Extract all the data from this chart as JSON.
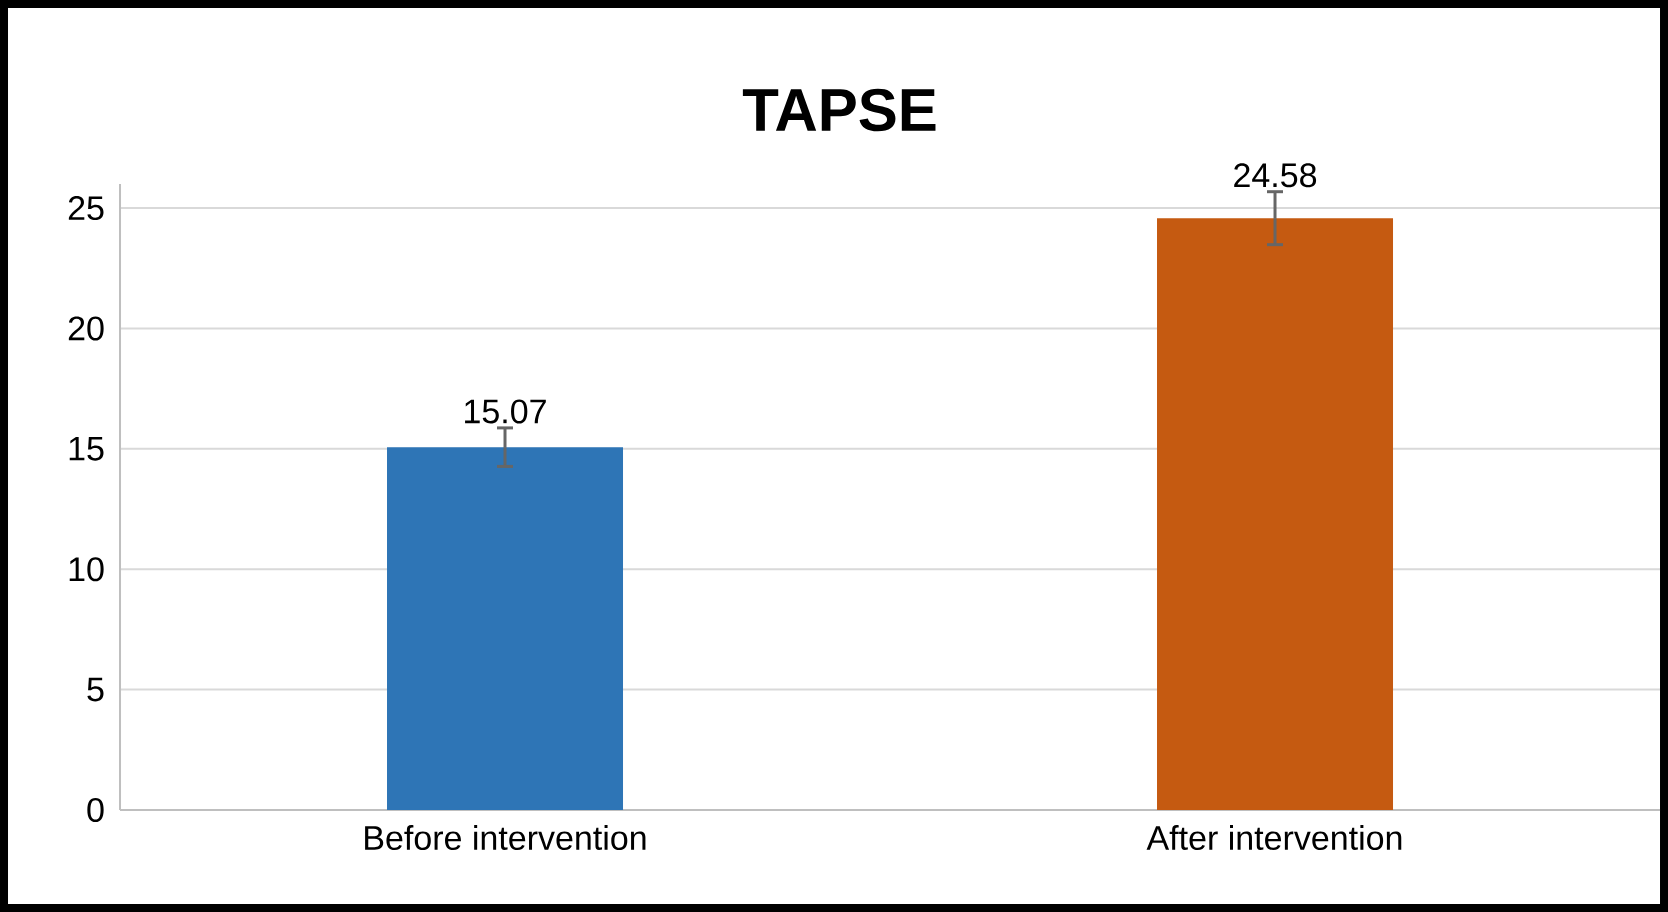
{
  "chart_data": {
    "type": "bar",
    "title": "TAPSE",
    "categories": [
      "Before intervention",
      "After intervention"
    ],
    "values": [
      15.07,
      24.58
    ],
    "colors": [
      "#2e75b6",
      "#c55a11"
    ],
    "errors": [
      0.8,
      1.1
    ],
    "value_labels": [
      "15.07",
      "24.58"
    ],
    "ylim": [
      0,
      26
    ],
    "yticks": [
      0,
      5,
      10,
      15,
      20,
      25
    ],
    "grid": "y"
  }
}
